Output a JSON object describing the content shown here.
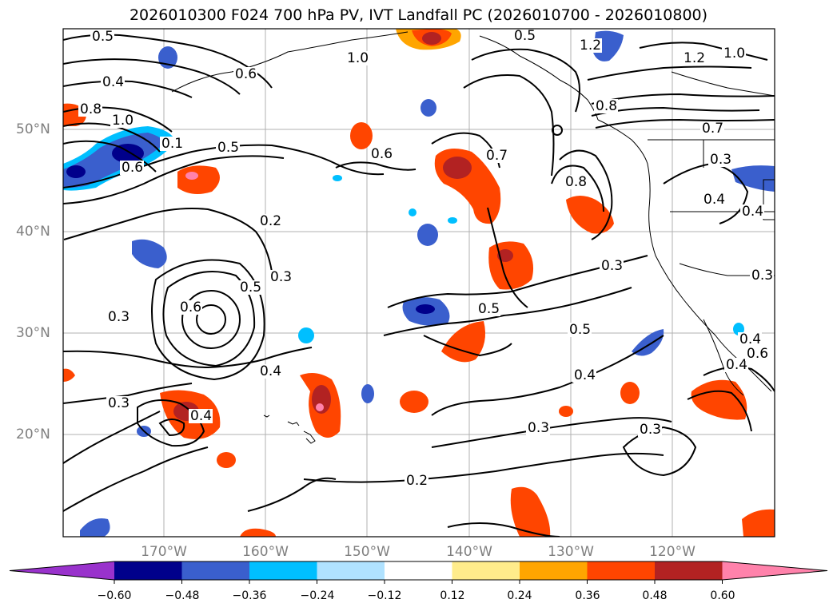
{
  "title": "2026010300 F024 700 hPa PV, IVT Landfall PC (2026010700 - 2026010800)",
  "lat_labels": [
    "50°N",
    "40°N",
    "30°N",
    "20°N"
  ],
  "lon_labels": [
    "170°W",
    "160°W",
    "150°W",
    "140°W",
    "130°W",
    "120°W"
  ],
  "colorbar": {
    "ticks": [
      "−0.60",
      "−0.48",
      "−0.36",
      "−0.24",
      "−0.12",
      "0.12",
      "0.24",
      "0.36",
      "0.48",
      "0.60"
    ],
    "colors": [
      "#9932cc",
      "#00008b",
      "#3a5fcd",
      "#00bfff",
      "#b0e2ff",
      "#ffffff",
      "#ffec8b",
      "#ffa500",
      "#ff4500",
      "#b22222",
      "#ff82ab"
    ]
  },
  "contour_labels": [
    "0.5",
    "0.4",
    "0.8",
    "1.0",
    "0.1",
    "0.6",
    "0.5",
    "0.6",
    "0.7",
    "0.8",
    "0.6",
    "1.2",
    "1.2",
    "1.0",
    "0.8",
    "0.7",
    "0.3",
    "0.4",
    "0.2",
    "0.3",
    "0.6",
    "0.5",
    "0.3",
    "0.4",
    "0.3",
    "0.5",
    "0.5",
    "0.4",
    "0.3",
    "0.3",
    "0.3",
    "0.2",
    "0.4",
    "0.3",
    "0.4",
    "0.6",
    "0.4",
    "0.4",
    "0.5",
    "1.0"
  ]
}
